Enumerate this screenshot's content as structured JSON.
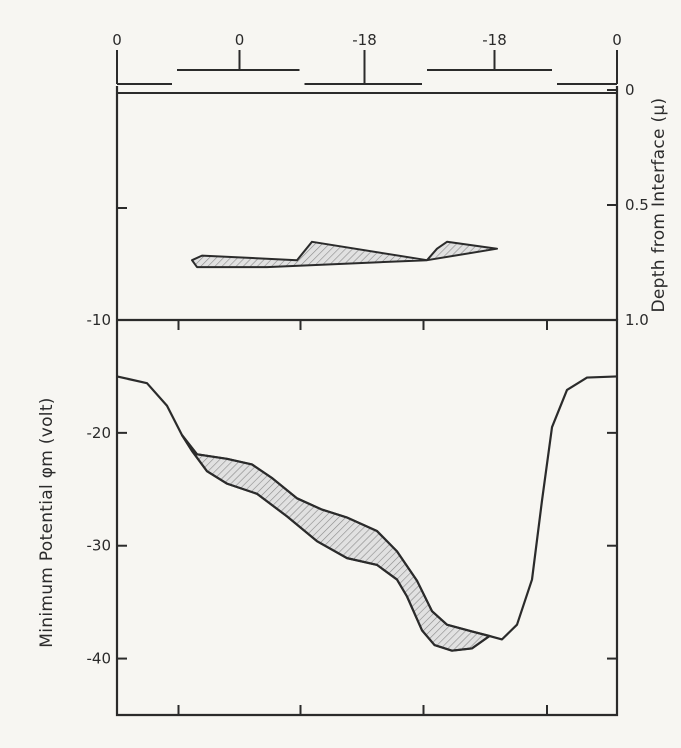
{
  "chart_data": [
    {
      "type": "table",
      "panel": "top",
      "title": "",
      "top_tick_labels": [
        "0",
        "0",
        "-18",
        "-18",
        "0"
      ],
      "gate_pattern": [
        0,
        0,
        -18,
        -18,
        0
      ],
      "ylabel_left_ticks": [
        "-10"
      ],
      "ylabel_right": "Depth from Interface (μ)",
      "right_tick_labels": [
        "0",
        "0.5",
        "1.0"
      ],
      "ylim_right": [
        0,
        1.0
      ],
      "gate_segments": [
        {
          "level": "high",
          "x_start": 0.0,
          "x_end": 0.11
        },
        {
          "level": "low",
          "x_start": 0.12,
          "x_end": 0.365
        },
        {
          "level": "high",
          "x_start": 0.375,
          "x_end": 0.61
        },
        {
          "level": "low",
          "x_start": 0.62,
          "x_end": 0.87
        },
        {
          "level": "high",
          "x_start": 0.88,
          "x_end": 1.0
        }
      ],
      "depletion_region": {
        "upper_boundary": [
          [
            0.15,
            0.74
          ],
          [
            0.17,
            0.72
          ],
          [
            0.36,
            0.74
          ],
          [
            0.39,
            0.66
          ],
          [
            0.62,
            0.74
          ],
          [
            0.64,
            0.69
          ],
          [
            0.66,
            0.66
          ],
          [
            0.76,
            0.69
          ]
        ],
        "lower_boundary": [
          [
            0.15,
            0.74
          ],
          [
            0.16,
            0.77
          ],
          [
            0.3,
            0.77
          ],
          [
            0.62,
            0.74
          ],
          [
            0.76,
            0.69
          ]
        ]
      }
    },
    {
      "type": "area",
      "panel": "bottom",
      "ylabel": "Minimum Potential φm (volt)",
      "y_tick_labels": [
        "-20",
        "-30",
        "-40"
      ],
      "ylim": [
        -45,
        -10
      ],
      "x_ticks": [
        0.123,
        0.367,
        0.613,
        0.86
      ],
      "curve_upper": [
        [
          0.0,
          -15.0
        ],
        [
          0.06,
          -15.6
        ],
        [
          0.1,
          -17.6
        ],
        [
          0.13,
          -20.2
        ],
        [
          0.16,
          -21.9
        ],
        [
          0.22,
          -22.3
        ],
        [
          0.27,
          -22.8
        ],
        [
          0.31,
          -24.0
        ],
        [
          0.36,
          -25.8
        ],
        [
          0.41,
          -26.8
        ],
        [
          0.46,
          -27.5
        ],
        [
          0.52,
          -28.7
        ],
        [
          0.56,
          -30.5
        ],
        [
          0.6,
          -33.1
        ],
        [
          0.63,
          -35.8
        ],
        [
          0.66,
          -37.0
        ],
        [
          0.71,
          -37.6
        ],
        [
          0.745,
          -38.0
        ],
        [
          0.77,
          -38.3
        ],
        [
          0.8,
          -37.0
        ],
        [
          0.83,
          -33.0
        ],
        [
          0.85,
          -26.0
        ],
        [
          0.87,
          -19.5
        ],
        [
          0.9,
          -16.2
        ],
        [
          0.94,
          -15.1
        ],
        [
          1.0,
          -15.0
        ]
      ],
      "curve_lower": [
        [
          0.13,
          -20.2
        ],
        [
          0.15,
          -21.6
        ],
        [
          0.18,
          -23.4
        ],
        [
          0.22,
          -24.5
        ],
        [
          0.28,
          -25.4
        ],
        [
          0.34,
          -27.4
        ],
        [
          0.4,
          -29.6
        ],
        [
          0.46,
          -31.1
        ],
        [
          0.52,
          -31.7
        ],
        [
          0.56,
          -33.0
        ],
        [
          0.58,
          -34.5
        ],
        [
          0.61,
          -37.5
        ],
        [
          0.635,
          -38.8
        ],
        [
          0.67,
          -39.3
        ],
        [
          0.71,
          -39.1
        ],
        [
          0.745,
          -38.0
        ]
      ]
    }
  ]
}
